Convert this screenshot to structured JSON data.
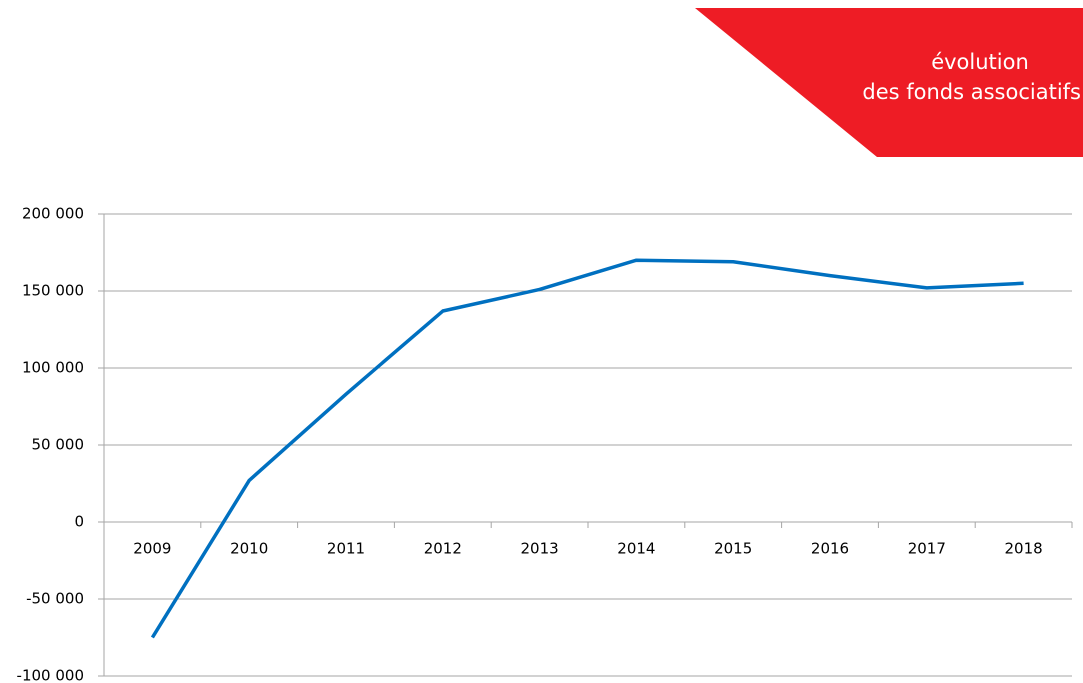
{
  "chart_data": {
    "type": "line",
    "title": [
      "évolution",
      "des fonds associatifs"
    ],
    "categories": [
      "2009",
      "2010",
      "2011",
      "2012",
      "2013",
      "2014",
      "2015",
      "2016",
      "2017",
      "2018"
    ],
    "series": [
      {
        "name": "fonds associatifs",
        "color": "#0070c0",
        "values": [
          -75000,
          27000,
          83000,
          137000,
          151000,
          170000,
          169000,
          160000,
          152000,
          155000
        ]
      }
    ],
    "ylim": [
      -100000,
      200000
    ],
    "yticks": [
      {
        "value": -100000,
        "label": "-100 000"
      },
      {
        "value": -50000,
        "label": "-50 000"
      },
      0,
      {
        "value": 50000,
        "label": "50 000"
      },
      {
        "value": 100000,
        "label": "100 000"
      },
      {
        "value": 150000,
        "label": "150 000"
      },
      {
        "value": 200000,
        "label": "200 000"
      }
    ],
    "grid": true
  }
}
